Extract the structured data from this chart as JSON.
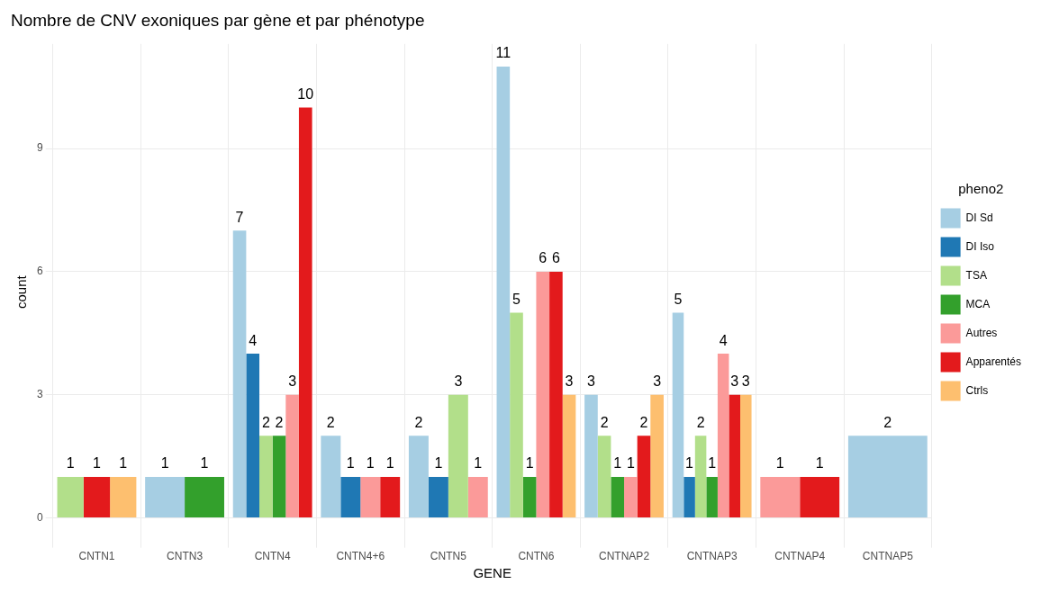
{
  "chart_data": {
    "type": "bar",
    "title": "Nombre de CNV exoniques par gène et par phénotype",
    "xlabel": "GENE",
    "ylabel": "count",
    "legend_title": "pheno2",
    "categories": [
      "CNTN1",
      "CNTN3",
      "CNTN4",
      "CNTN4+6",
      "CNTN5",
      "CNTN6",
      "CNTNAP2",
      "CNTNAP3",
      "CNTNAP4",
      "CNTNAP5"
    ],
    "series": [
      {
        "name": "DI Sd",
        "color": "#a6cee3",
        "values": [
          null,
          1,
          7,
          2,
          2,
          11,
          3,
          5,
          null,
          2
        ]
      },
      {
        "name": "DI Iso",
        "color": "#1f78b4",
        "values": [
          null,
          null,
          4,
          1,
          1,
          null,
          null,
          1,
          null,
          null
        ]
      },
      {
        "name": "TSA",
        "color": "#b2df8a",
        "values": [
          1,
          null,
          2,
          null,
          3,
          5,
          2,
          2,
          null,
          null
        ]
      },
      {
        "name": "MCA",
        "color": "#33a02c",
        "values": [
          null,
          1,
          2,
          null,
          null,
          1,
          1,
          1,
          null,
          null
        ]
      },
      {
        "name": "Autres",
        "color": "#fb9a99",
        "values": [
          null,
          null,
          3,
          1,
          1,
          6,
          1,
          4,
          1,
          null
        ]
      },
      {
        "name": "Apparentés",
        "color": "#e31a1c",
        "values": [
          1,
          null,
          10,
          1,
          null,
          6,
          2,
          3,
          1,
          null
        ]
      },
      {
        "name": "Ctrls",
        "color": "#fdbf6f",
        "values": [
          1,
          null,
          null,
          null,
          null,
          3,
          3,
          3,
          null,
          null
        ]
      }
    ],
    "ylim": [
      -0.55,
      11.55
    ],
    "yticks": [
      0,
      3,
      6,
      9
    ],
    "grid": true,
    "legend": "right",
    "data_labels": true
  }
}
